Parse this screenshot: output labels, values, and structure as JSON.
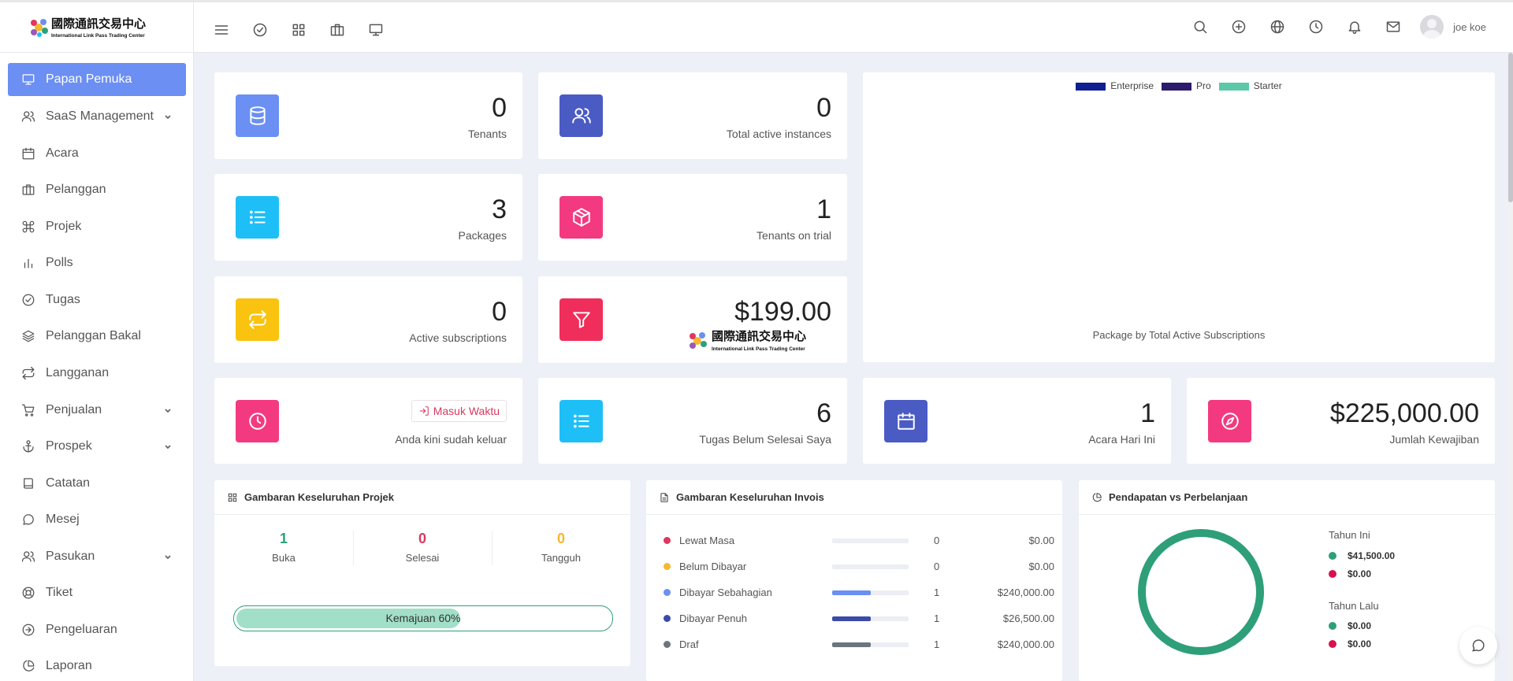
{
  "brand": {
    "logo_text_cn": "國際通訊交易中心",
    "logo_text_en": "International Link Pass Trading Center"
  },
  "user": {
    "name": "joe koe"
  },
  "sidebar": {
    "items": [
      {
        "label": "Papan Pemuka",
        "icon": "monitor-icon",
        "active": true
      },
      {
        "label": "SaaS Management",
        "icon": "users-icon",
        "has_children": true
      },
      {
        "label": "Acara",
        "icon": "calendar-icon"
      },
      {
        "label": "Pelanggan",
        "icon": "briefcase-icon"
      },
      {
        "label": "Projek",
        "icon": "command-icon"
      },
      {
        "label": "Polls",
        "icon": "bar-chart-icon"
      },
      {
        "label": "Tugas",
        "icon": "check-circle-icon"
      },
      {
        "label": "Pelanggan Bakal",
        "icon": "layers-icon"
      },
      {
        "label": "Langganan",
        "icon": "repeat-icon"
      },
      {
        "label": "Penjualan",
        "icon": "cart-icon",
        "has_children": true
      },
      {
        "label": "Prospek",
        "icon": "anchor-icon",
        "has_children": true
      },
      {
        "label": "Catatan",
        "icon": "book-icon"
      },
      {
        "label": "Mesej",
        "icon": "message-icon"
      },
      {
        "label": "Pasukan",
        "icon": "team-icon",
        "has_children": true
      },
      {
        "label": "Tiket",
        "icon": "lifebuoy-icon"
      },
      {
        "label": "Pengeluaran",
        "icon": "arrow-circle-icon"
      },
      {
        "label": "Laporan",
        "icon": "pie-chart-icon"
      }
    ]
  },
  "stats": {
    "tenants": {
      "value": "0",
      "label": "Tenants",
      "color": "#6b8ff2",
      "icon": "database-icon"
    },
    "instances": {
      "value": "0",
      "label": "Total active instances",
      "color": "#4a5bc4",
      "icon": "users-icon"
    },
    "packages": {
      "value": "3",
      "label": "Packages",
      "color": "#1ebff7",
      "icon": "list-icon"
    },
    "trial": {
      "value": "1",
      "label": "Tenants on trial",
      "color": "#f33a80",
      "icon": "box-icon"
    },
    "subscriptions": {
      "value": "0",
      "label": "Active subscriptions",
      "color": "#f9c30f",
      "icon": "repeat-icon"
    },
    "revenue": {
      "value": "$199.00",
      "color": "#f02e5b",
      "icon": "filter-icon"
    },
    "clock": {
      "button_label": "Masuk Waktu",
      "status": "Anda kini sudah keluar",
      "color": "#f33a80",
      "icon": "clock-icon"
    },
    "tasks": {
      "value": "6",
      "label": "Tugas Belum Selesai Saya",
      "color": "#1ebff7",
      "icon": "list-icon"
    },
    "events": {
      "value": "1",
      "label": "Acara Hari Ini",
      "color": "#4a5bc4",
      "icon": "calendar-icon"
    },
    "due": {
      "value": "$225,000.00",
      "label": "Jumlah Kewajiban",
      "color": "#f33a80",
      "icon": "compass-icon"
    }
  },
  "package_chart": {
    "caption": "Package by Total Active Subscriptions",
    "legend": [
      {
        "name": "Enterprise",
        "color": "#0f1f8f"
      },
      {
        "name": "Pro",
        "color": "#2c1a6b"
      },
      {
        "name": "Starter",
        "color": "#5cc8a8"
      }
    ]
  },
  "projects": {
    "title": "Gambaran Keseluruhan Projek",
    "open": {
      "value": "1",
      "label": "Buka",
      "color": "#2e9f78"
    },
    "done": {
      "value": "0",
      "label": "Selesai",
      "color": "#d6395e"
    },
    "hold": {
      "value": "0",
      "label": "Tangguh",
      "color": "#f5b82e"
    },
    "progress_percent": 60,
    "progress_label": "Kemajuan 60%"
  },
  "invoices": {
    "title": "Gambaran Keseluruhan Invois",
    "rows": [
      {
        "label": "Lewat Masa",
        "count": "0",
        "amount": "$0.00",
        "color": "#e0365f",
        "fill": 0
      },
      {
        "label": "Belum Dibayar",
        "count": "0",
        "amount": "$0.00",
        "color": "#f5b82e",
        "fill": 0
      },
      {
        "label": "Dibayar Sebahagian",
        "count": "1",
        "amount": "$240,000.00",
        "color": "#6b8ff2",
        "fill": 0.5
      },
      {
        "label": "Dibayar Penuh",
        "count": "1",
        "amount": "$26,500.00",
        "color": "#3b4ba8",
        "fill": 0.5
      },
      {
        "label": "Draf",
        "count": "1",
        "amount": "$240,000.00",
        "color": "#6c757d",
        "fill": 0.5
      }
    ]
  },
  "income_expense": {
    "title": "Pendapatan vs Perbelanjaan",
    "this_year": {
      "label": "Tahun Ini",
      "income": "$41,500.00",
      "expense": "$0.00"
    },
    "last_year": {
      "label": "Tahun Lalu",
      "income": "$0.00",
      "expense": "$0.00"
    },
    "income_color": "#2e9f78",
    "expense_color": "#d6124e"
  }
}
